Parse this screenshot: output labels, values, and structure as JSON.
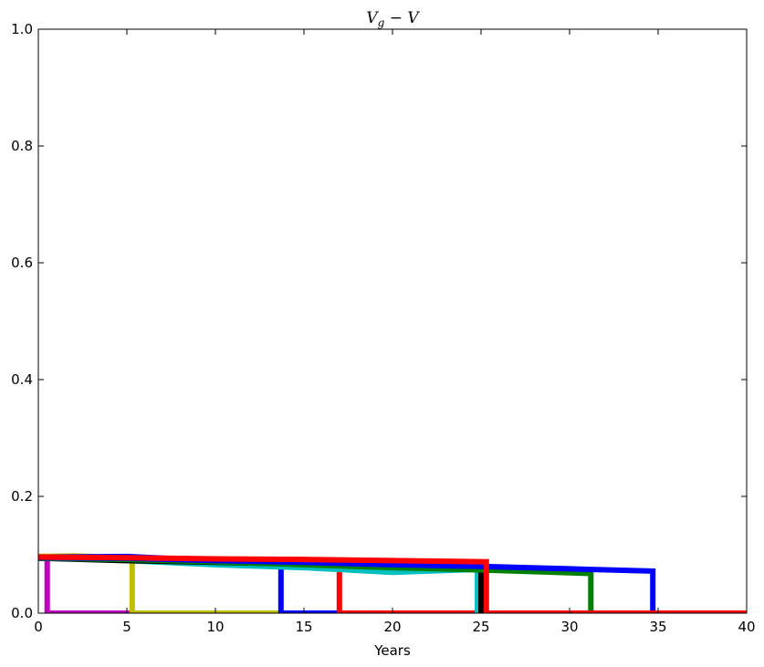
{
  "chart_data": {
    "type": "line",
    "title": "V_g − V",
    "title_parts": {
      "base1": "V",
      "sub": "g",
      "rest": " − V"
    },
    "xlabel": "Years",
    "ylabel": "",
    "xlim": [
      0,
      40
    ],
    "ylim": [
      0,
      1.0
    ],
    "xticks": [
      "0",
      "5",
      "10",
      "15",
      "20",
      "25",
      "30",
      "35",
      "40"
    ],
    "yticks": [
      "0.0",
      "0.2",
      "0.4",
      "0.6",
      "0.8",
      "1.0"
    ],
    "grid": false,
    "legend": "none",
    "series": [
      {
        "color": "#bf00bf",
        "x": [
          0,
          0.5,
          0.5,
          40
        ],
        "y": [
          0.097,
          0.096,
          0.0,
          0.0
        ]
      },
      {
        "color": "#bfbf00",
        "x": [
          0,
          2,
          4,
          5.3,
          5.3,
          40
        ],
        "y": [
          0.097,
          0.098,
          0.096,
          0.093,
          0.0,
          0.0
        ]
      },
      {
        "color": "#0000ff",
        "x": [
          0,
          5,
          10,
          13.7,
          13.7,
          40
        ],
        "y": [
          0.096,
          0.097,
          0.09,
          0.085,
          0.0,
          0.0
        ]
      },
      {
        "color": "#ff0000",
        "x": [
          0,
          10,
          17.0,
          17.0,
          40
        ],
        "y": [
          0.096,
          0.092,
          0.088,
          0.0,
          0.0
        ]
      },
      {
        "color": "#00bfbf",
        "x": [
          0,
          5,
          10,
          15,
          20,
          24.8,
          24.8,
          40
        ],
        "y": [
          0.095,
          0.09,
          0.083,
          0.078,
          0.07,
          0.075,
          0.0,
          0.0
        ]
      },
      {
        "color": "#000000",
        "x": [
          0,
          5,
          10,
          15,
          20,
          25.0,
          25.0,
          40
        ],
        "y": [
          0.094,
          0.09,
          0.087,
          0.084,
          0.08,
          0.078,
          0.0,
          0.0
        ]
      },
      {
        "color": "#008000",
        "x": [
          0,
          5,
          10,
          15,
          20,
          25,
          31.2,
          31.2,
          40
        ],
        "y": [
          0.094,
          0.092,
          0.088,
          0.083,
          0.078,
          0.074,
          0.068,
          0.0,
          0.0
        ]
      },
      {
        "color": "#0000ff",
        "x": [
          0,
          5,
          10,
          15,
          20,
          25,
          30,
          34.7,
          34.7,
          40
        ],
        "y": [
          0.095,
          0.094,
          0.09,
          0.087,
          0.083,
          0.08,
          0.076,
          0.072,
          0.0,
          0.0
        ]
      },
      {
        "color": "#ff0000",
        "x": [
          0,
          5,
          10,
          15,
          20,
          25.3,
          25.3,
          40
        ],
        "y": [
          0.096,
          0.095,
          0.093,
          0.092,
          0.09,
          0.088,
          0.0,
          0.0
        ]
      }
    ]
  }
}
